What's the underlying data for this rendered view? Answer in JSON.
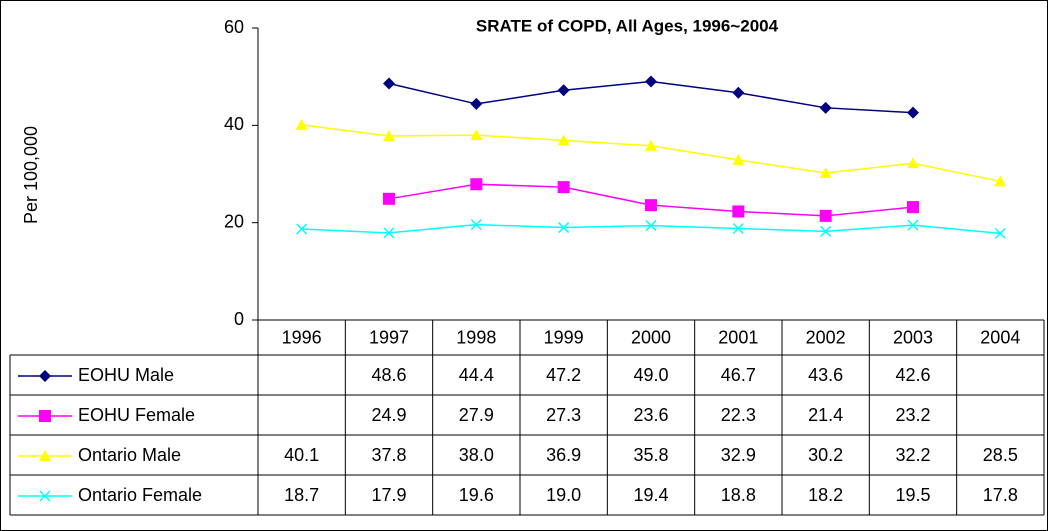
{
  "chart_data": {
    "type": "line",
    "title": "SRATE of COPD, All Ages, 1996~2004",
    "y_label": "Per 100,000",
    "categories": [
      "1996",
      "1997",
      "1998",
      "1999",
      "2000",
      "2001",
      "2002",
      "2003",
      "2004"
    ],
    "ylim": [
      0,
      60
    ],
    "yticks": [
      0,
      20,
      40,
      60
    ],
    "grid": false,
    "series": [
      {
        "name": "EOHU Male",
        "color": "#000080",
        "marker": "diamond",
        "values": [
          null,
          48.6,
          44.4,
          47.2,
          49.0,
          46.7,
          43.6,
          42.6,
          null
        ],
        "value_labels": [
          null,
          "48.6",
          "44.4",
          "47.2",
          "49.0",
          "46.7",
          "43.6",
          "42.6",
          null
        ]
      },
      {
        "name": "EOHU Female",
        "color": "#FF00FF",
        "marker": "square",
        "values": [
          null,
          24.9,
          27.9,
          27.3,
          23.6,
          22.3,
          21.4,
          23.2,
          null
        ],
        "value_labels": [
          null,
          "24.9",
          "27.9",
          "27.3",
          "23.6",
          "22.3",
          "21.4",
          "23.2",
          null
        ]
      },
      {
        "name": "Ontario Male",
        "color": "#FFFF00",
        "marker": "triangle",
        "values": [
          40.1,
          37.8,
          38.0,
          36.9,
          35.8,
          32.9,
          30.2,
          32.2,
          28.5
        ],
        "value_labels": [
          "40.1",
          "37.8",
          "38.0",
          "36.9",
          "35.8",
          "32.9",
          "30.2",
          "32.2",
          "28.5"
        ]
      },
      {
        "name": "Ontario Female",
        "color": "#00FFFF",
        "marker": "x",
        "values": [
          18.7,
          17.9,
          19.6,
          19.0,
          19.4,
          18.8,
          18.2,
          19.5,
          17.8
        ],
        "value_labels": [
          "18.7",
          "17.9",
          "19.6",
          "19.0",
          "19.4",
          "18.8",
          "18.2",
          "19.5",
          "17.8"
        ]
      }
    ]
  }
}
